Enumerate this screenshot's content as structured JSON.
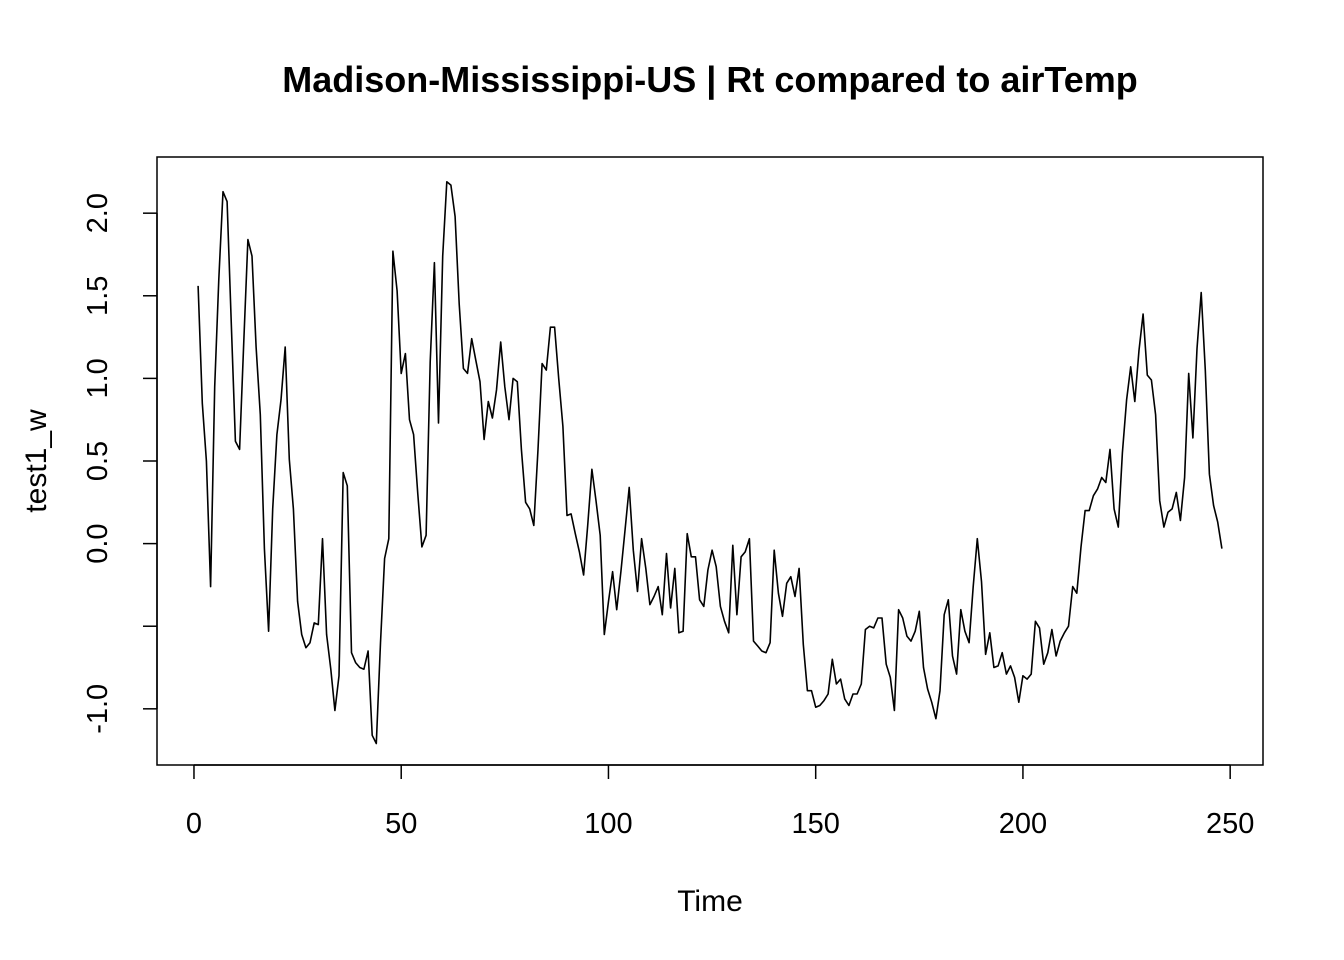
{
  "chart_data": {
    "type": "line",
    "title": "Madison-Mississippi-US | Rt compared to airTemp",
    "xlabel": "Time",
    "ylabel": "test1_w",
    "xlim": [
      -8.92,
      257.92
    ],
    "ylim": [
      -1.34,
      2.34
    ],
    "x_ticks": [
      0,
      50,
      100,
      150,
      200,
      250
    ],
    "x_tick_labels": [
      "0",
      "50",
      "100",
      "150",
      "200",
      "250"
    ],
    "y_ticks": [
      -1.0,
      -0.5,
      0.0,
      0.5,
      1.0,
      1.5,
      2.0
    ],
    "y_tick_labels": [
      "-1.0",
      "",
      "0.0",
      "0.5",
      "1.0",
      "1.5",
      "2.0"
    ],
    "grid": false,
    "series": [
      {
        "x": [
          1,
          2,
          3,
          4,
          5,
          6,
          7,
          8,
          9,
          10,
          11,
          12,
          13,
          14,
          15,
          16,
          17,
          18,
          19,
          20,
          21,
          22,
          23,
          24,
          25,
          26,
          27,
          28,
          29,
          30,
          31,
          32,
          33,
          34,
          35,
          36,
          37,
          38,
          39,
          40,
          41,
          42,
          43,
          44,
          45,
          46,
          47,
          48,
          49,
          50,
          51,
          52,
          53,
          54,
          55,
          56,
          57,
          58,
          59,
          60,
          61,
          62,
          63,
          64,
          65,
          66,
          67,
          68,
          69,
          70,
          71,
          72,
          73,
          74,
          75,
          76,
          77,
          78,
          79,
          80,
          81,
          82,
          83,
          84,
          85,
          86,
          87,
          88,
          89,
          90,
          91,
          92,
          93,
          94,
          95,
          96,
          97,
          98,
          99,
          100,
          101,
          102,
          103,
          104,
          105,
          106,
          107,
          108,
          109,
          110,
          111,
          112,
          113,
          114,
          115,
          116,
          117,
          118,
          119,
          120,
          121,
          122,
          123,
          124,
          125,
          126,
          127,
          128,
          129,
          130,
          131,
          132,
          133,
          134,
          135,
          136,
          137,
          138,
          139,
          140,
          141,
          142,
          143,
          144,
          145,
          146,
          147,
          148,
          149,
          150,
          151,
          152,
          153,
          154,
          155,
          156,
          157,
          158,
          159,
          160,
          161,
          162,
          163,
          164,
          165,
          166,
          167,
          168,
          169,
          170,
          171,
          172,
          173,
          174,
          175,
          176,
          177,
          178,
          179,
          180,
          181,
          182,
          183,
          184,
          185,
          186,
          187,
          188,
          189,
          190,
          191,
          192,
          193,
          194,
          195,
          196,
          197,
          198,
          199,
          200,
          201,
          202,
          203,
          204,
          205,
          206,
          207,
          208,
          209,
          210,
          211,
          212,
          213,
          214,
          215,
          216,
          217,
          218,
          219,
          220,
          221,
          222,
          223,
          224,
          225,
          226,
          227,
          228,
          229,
          230,
          231,
          232,
          233,
          234,
          235,
          236,
          237,
          238,
          239,
          240,
          241,
          242,
          243,
          244,
          245,
          246,
          247,
          248
        ],
        "values": [
          1.56,
          0.85,
          0.5,
          -0.26,
          0.95,
          1.6,
          2.13,
          2.07,
          1.33,
          0.62,
          0.57,
          1.21,
          1.84,
          1.74,
          1.19,
          0.78,
          -0.03,
          -0.53,
          0.21,
          0.66,
          0.87,
          1.19,
          0.51,
          0.21,
          -0.35,
          -0.55,
          -0.63,
          -0.6,
          -0.48,
          -0.49,
          0.03,
          -0.55,
          -0.76,
          -1.01,
          -0.8,
          0.43,
          0.35,
          -0.66,
          -0.72,
          -0.75,
          -0.76,
          -0.65,
          -1.16,
          -1.21,
          -0.6,
          -0.09,
          0.03,
          1.77,
          1.53,
          1.03,
          1.15,
          0.75,
          0.66,
          0.3,
          -0.02,
          0.05,
          1.1,
          1.7,
          0.73,
          1.74,
          2.19,
          2.17,
          1.98,
          1.45,
          1.06,
          1.03,
          1.24,
          1.11,
          0.98,
          0.63,
          0.86,
          0.76,
          0.93,
          1.22,
          0.95,
          0.75,
          1.0,
          0.98,
          0.57,
          0.25,
          0.21,
          0.11,
          0.57,
          1.09,
          1.05,
          1.31,
          1.31,
          1.0,
          0.71,
          0.17,
          0.18,
          0.06,
          -0.05,
          -0.19,
          0.11,
          0.45,
          0.26,
          0.05,
          -0.55,
          -0.35,
          -0.17,
          -0.4,
          -0.17,
          0.08,
          0.34,
          -0.04,
          -0.29,
          0.03,
          -0.15,
          -0.37,
          -0.32,
          -0.26,
          -0.43,
          -0.06,
          -0.39,
          -0.15,
          -0.54,
          -0.53,
          0.06,
          -0.08,
          -0.08,
          -0.34,
          -0.38,
          -0.16,
          -0.04,
          -0.14,
          -0.38,
          -0.47,
          -0.54,
          -0.01,
          -0.43,
          -0.08,
          -0.05,
          0.03,
          -0.59,
          -0.62,
          -0.65,
          -0.66,
          -0.6,
          -0.04,
          -0.3,
          -0.44,
          -0.24,
          -0.2,
          -0.32,
          -0.15,
          -0.61,
          -0.89,
          -0.89,
          -0.99,
          -0.98,
          -0.95,
          -0.91,
          -0.7,
          -0.85,
          -0.82,
          -0.94,
          -0.98,
          -0.91,
          -0.91,
          -0.85,
          -0.52,
          -0.5,
          -0.51,
          -0.45,
          -0.45,
          -0.73,
          -0.81,
          -1.01,
          -0.4,
          -0.45,
          -0.56,
          -0.59,
          -0.53,
          -0.41,
          -0.75,
          -0.88,
          -0.96,
          -1.06,
          -0.89,
          -0.43,
          -0.34,
          -0.68,
          -0.79,
          -0.4,
          -0.53,
          -0.6,
          -0.26,
          0.03,
          -0.23,
          -0.67,
          -0.54,
          -0.75,
          -0.74,
          -0.66,
          -0.79,
          -0.74,
          -0.81,
          -0.96,
          -0.8,
          -0.82,
          -0.79,
          -0.47,
          -0.51,
          -0.73,
          -0.66,
          -0.52,
          -0.68,
          -0.59,
          -0.54,
          -0.5,
          -0.26,
          -0.3,
          -0.02,
          0.2,
          0.2,
          0.29,
          0.33,
          0.4,
          0.37,
          0.57,
          0.21,
          0.1,
          0.55,
          0.87,
          1.07,
          0.86,
          1.17,
          1.39,
          1.02,
          0.99,
          0.78,
          0.26,
          0.1,
          0.19,
          0.21,
          0.31,
          0.14,
          0.4,
          1.03,
          0.64,
          1.18,
          1.52,
          1.05,
          0.42,
          0.23,
          0.13,
          -0.03
        ]
      }
    ]
  }
}
